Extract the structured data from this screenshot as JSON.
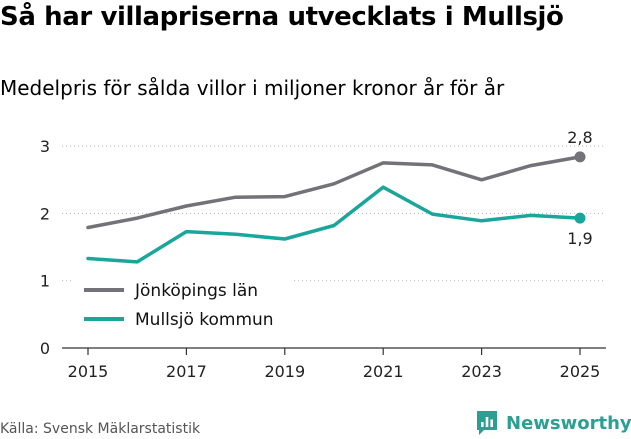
{
  "header": {
    "title": "Så har villapriserna utvecklats i Mullsjö",
    "subtitle": "Medelpris för sålda villor i miljoner kronor år för år"
  },
  "footer": {
    "source": "Källa: Svensk Mäklarstatistik",
    "brand": "Newsworthy",
    "brand_icon": "bar-chart-speech-bubble-icon"
  },
  "colors": {
    "grid": "#b3b3b3",
    "axis": "#333333",
    "county": "#737278",
    "municipality": "#1aa69a",
    "brand": "#2c9f93"
  },
  "chart_data": {
    "type": "line",
    "x": [
      2015,
      2016,
      2017,
      2018,
      2019,
      2020,
      2021,
      2022,
      2023,
      2024,
      2025
    ],
    "xticks": [
      "2015",
      "2017",
      "2019",
      "2021",
      "2023",
      "2025"
    ],
    "yticks": [
      "0",
      "1",
      "2",
      "3"
    ],
    "ylim": [
      0,
      3.3
    ],
    "xlabel": "",
    "ylabel": "",
    "grid": true,
    "legend_position": "bottom-left",
    "series": [
      {
        "name": "Jönköpings län",
        "color": "#737278",
        "values": [
          1.79,
          1.93,
          2.11,
          2.24,
          2.25,
          2.44,
          2.75,
          2.72,
          2.5,
          2.71,
          2.84
        ],
        "end_label": "2,8"
      },
      {
        "name": "Mullsjö kommun",
        "color": "#1aa69a",
        "values": [
          1.33,
          1.28,
          1.73,
          1.69,
          1.62,
          1.82,
          2.39,
          1.99,
          1.89,
          1.97,
          1.93
        ],
        "end_label": "1,9"
      }
    ]
  }
}
